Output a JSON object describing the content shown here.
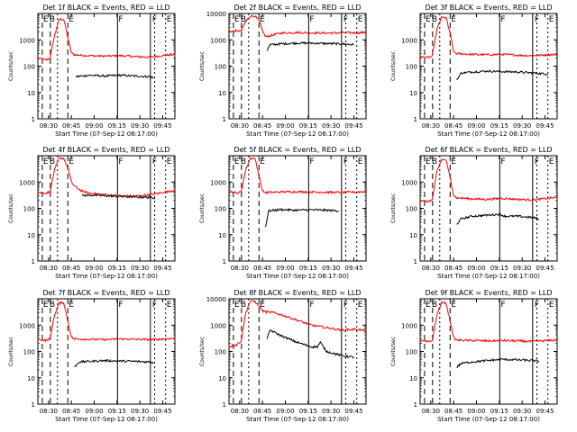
{
  "figure": {
    "xlabel": "Start Time (07-Sep-12 08:17:00)",
    "ylabel": "Counts/sec",
    "xticks": [
      "08:30",
      "08:45",
      "09:00",
      "09:15",
      "09:30",
      "09:45"
    ],
    "yticks": [
      "1",
      "10",
      "100",
      "1000",
      "10000"
    ],
    "flags": [
      "E",
      "B",
      "E",
      "F",
      "F",
      "E"
    ],
    "colors": {
      "events": "#000000",
      "lld": "#ff0000",
      "background": "#ffffff"
    }
  },
  "chart_data": [
    {
      "type": "line",
      "title": "Det 1f  BLACK = Events, RED = LLD",
      "xlabel": "Start Time (07-Sep-12 08:17:00)",
      "ylabel": "Counts/sec",
      "x_unit": "minutes after 08:17:00",
      "xlim": [
        6,
        96
      ],
      "ylim": [
        1,
        10000
      ],
      "yscale": "log",
      "ytick_labels": [
        "1",
        "10",
        "100",
        "1000"
      ],
      "series": [
        {
          "name": "LLD",
          "color": "#ff0000",
          "x": [
            6,
            11,
            14,
            17,
            20,
            23,
            26,
            28,
            30,
            40,
            50,
            60,
            70,
            80,
            90,
            96
          ],
          "y": [
            200,
            170,
            200,
            1500,
            6000,
            6000,
            1000,
            320,
            270,
            250,
            240,
            250,
            230,
            220,
            260,
            280
          ]
        },
        {
          "name": "Events",
          "color": "#000000",
          "x": [
            31,
            40,
            50,
            60,
            70,
            80,
            82
          ],
          "y": [
            40,
            45,
            42,
            45,
            42,
            40,
            35
          ]
        }
      ]
    },
    {
      "type": "line",
      "title": "Det 2f  BLACK = Events, RED = LLD",
      "xlabel": "Start Time (07-Sep-12 08:17:00)",
      "ylabel": "Counts/sec",
      "x_unit": "minutes after 08:17:00",
      "xlim": [
        6,
        96
      ],
      "ylim": [
        1,
        10000
      ],
      "yscale": "log",
      "ytick_labels": [
        "1",
        "10",
        "100",
        "1000",
        "10000"
      ],
      "series": [
        {
          "name": "LLD",
          "color": "#ff0000",
          "x": [
            6,
            14,
            17,
            20,
            23,
            26,
            28,
            30,
            40,
            50,
            60,
            70,
            80,
            90,
            96
          ],
          "y": [
            2100,
            2200,
            5000,
            8000,
            8000,
            5000,
            2200,
            1300,
            1800,
            1900,
            1850,
            1800,
            1850,
            1850,
            1900
          ]
        },
        {
          "name": "Events",
          "color": "#000000",
          "x": [
            31,
            33,
            40,
            50,
            60,
            70,
            80,
            88
          ],
          "y": [
            400,
            650,
            700,
            750,
            750,
            720,
            700,
            650
          ]
        }
      ]
    },
    {
      "type": "line",
      "title": "Det 3f  BLACK = Events, RED = LLD",
      "xlabel": "Start Time (07-Sep-12 08:17:00)",
      "ylabel": "Counts/sec",
      "x_unit": "minutes after 08:17:00",
      "xlim": [
        6,
        96
      ],
      "ylim": [
        1,
        10000
      ],
      "yscale": "log",
      "ytick_labels": [
        "1",
        "10",
        "100",
        "1000"
      ],
      "series": [
        {
          "name": "LLD",
          "color": "#ff0000",
          "x": [
            6,
            11,
            14,
            17,
            20,
            23,
            26,
            28,
            30,
            40,
            50,
            60,
            70,
            80,
            90,
            96
          ],
          "y": [
            230,
            210,
            240,
            2500,
            7000,
            7000,
            1500,
            350,
            300,
            280,
            270,
            280,
            260,
            250,
            270,
            280
          ]
        },
        {
          "name": "Events",
          "color": "#000000",
          "x": [
            30,
            33,
            40,
            50,
            60,
            70,
            80,
            90
          ],
          "y": [
            30,
            55,
            60,
            65,
            62,
            60,
            55,
            50
          ]
        }
      ]
    },
    {
      "type": "line",
      "title": "Det 4f  BLACK = Events, RED = LLD",
      "xlabel": "Start Time (07-Sep-12 08:17:00)",
      "ylabel": "Counts/sec",
      "x_unit": "minutes after 08:17:00",
      "xlim": [
        6,
        96
      ],
      "ylim": [
        1,
        10000
      ],
      "yscale": "log",
      "ytick_labels": [
        "1",
        "10",
        "100",
        "1000"
      ],
      "series": [
        {
          "name": "LLD",
          "color": "#ff0000",
          "x": [
            6,
            11,
            14,
            17,
            20,
            23,
            26,
            28,
            30,
            35,
            40,
            50,
            60,
            70,
            80,
            90,
            96
          ],
          "y": [
            400,
            380,
            420,
            3000,
            8000,
            8000,
            3000,
            1000,
            700,
            450,
            380,
            330,
            300,
            290,
            330,
            420,
            480
          ]
        },
        {
          "name": "Events",
          "color": "#000000",
          "x": [
            35,
            40,
            50,
            60,
            70,
            80,
            83
          ],
          "y": [
            300,
            320,
            300,
            280,
            270,
            260,
            250
          ]
        }
      ]
    },
    {
      "type": "line",
      "title": "Det 5f  BLACK = Events, RED = LLD",
      "xlabel": "Start Time (07-Sep-12 08:17:00)",
      "ylabel": "Counts/sec",
      "x_unit": "minutes after 08:17:00",
      "xlim": [
        6,
        96
      ],
      "ylim": [
        1,
        10000
      ],
      "yscale": "log",
      "ytick_labels": [
        "1",
        "10",
        "100",
        "1000"
      ],
      "series": [
        {
          "name": "LLD",
          "color": "#ff0000",
          "x": [
            6,
            11,
            14,
            17,
            20,
            23,
            26,
            28,
            30,
            40,
            50,
            60,
            70,
            80,
            90,
            96
          ],
          "y": [
            450,
            380,
            420,
            3000,
            8000,
            8000,
            1500,
            450,
            400,
            420,
            430,
            420,
            410,
            400,
            420,
            430
          ]
        },
        {
          "name": "Events",
          "color": "#000000",
          "x": [
            30,
            32,
            40,
            50,
            60,
            70,
            78
          ],
          "y": [
            20,
            80,
            90,
            85,
            88,
            85,
            80
          ]
        }
      ]
    },
    {
      "type": "line",
      "title": "Det 6f  BLACK = Events, RED = LLD",
      "xlabel": "Start Time (07-Sep-12 08:17:00)",
      "ylabel": "Counts/sec",
      "x_unit": "minutes after 08:17:00",
      "xlim": [
        6,
        96
      ],
      "ylim": [
        1,
        10000
      ],
      "yscale": "log",
      "ytick_labels": [
        "1",
        "10",
        "100",
        "1000"
      ],
      "series": [
        {
          "name": "LLD",
          "color": "#ff0000",
          "x": [
            6,
            11,
            14,
            17,
            20,
            23,
            26,
            28,
            30,
            40,
            50,
            60,
            70,
            80,
            90,
            96
          ],
          "y": [
            200,
            180,
            210,
            2500,
            7000,
            7000,
            1200,
            320,
            250,
            230,
            220,
            240,
            220,
            210,
            240,
            260
          ]
        },
        {
          "name": "Events",
          "color": "#000000",
          "x": [
            30,
            33,
            40,
            50,
            58,
            62,
            70,
            80,
            84
          ],
          "y": [
            25,
            40,
            50,
            55,
            60,
            50,
            50,
            45,
            40
          ]
        }
      ]
    },
    {
      "type": "line",
      "title": "Det 7f  BLACK = Events, RED = LLD",
      "xlabel": "Start Time (07-Sep-12 08:17:00)",
      "ylabel": "Counts/sec",
      "x_unit": "minutes after 08:17:00",
      "xlim": [
        6,
        96
      ],
      "ylim": [
        1,
        10000
      ],
      "yscale": "log",
      "ytick_labels": [
        "1",
        "10",
        "100",
        "1000"
      ],
      "series": [
        {
          "name": "LLD",
          "color": "#ff0000",
          "x": [
            6,
            11,
            14,
            17,
            20,
            23,
            26,
            28,
            30,
            40,
            50,
            60,
            70,
            80,
            90,
            96
          ],
          "y": [
            300,
            260,
            300,
            2500,
            7000,
            7000,
            1200,
            350,
            300,
            290,
            280,
            300,
            290,
            280,
            300,
            320
          ]
        },
        {
          "name": "Events",
          "color": "#000000",
          "x": [
            30,
            33,
            40,
            50,
            60,
            70,
            80,
            82
          ],
          "y": [
            25,
            40,
            42,
            45,
            43,
            42,
            40,
            38
          ]
        }
      ]
    },
    {
      "type": "line",
      "title": "Det 8f  BLACK = Events, RED = LLD",
      "xlabel": "Start Time (07-Sep-12 08:17:00)",
      "ylabel": "Counts/sec",
      "x_unit": "minutes after 08:17:00",
      "xlim": [
        6,
        96
      ],
      "ylim": [
        1,
        10000
      ],
      "yscale": "log",
      "ytick_labels": [
        "1",
        "10",
        "100",
        "1000",
        "10000"
      ],
      "series": [
        {
          "name": "LLD",
          "color": "#ff0000",
          "x": [
            6,
            11,
            14,
            17,
            20,
            23,
            26,
            28,
            30,
            35,
            40,
            50,
            60,
            70,
            80,
            90,
            96
          ],
          "y": [
            150,
            180,
            250,
            3000,
            8000,
            8000,
            5000,
            3500,
            3200,
            3000,
            2500,
            1600,
            1000,
            800,
            650,
            700,
            600
          ]
        },
        {
          "name": "Events",
          "color": "#000000",
          "x": [
            31,
            33,
            40,
            50,
            60,
            64,
            66,
            70,
            80,
            88
          ],
          "y": [
            300,
            650,
            400,
            230,
            150,
            150,
            220,
            100,
            70,
            60
          ]
        }
      ]
    },
    {
      "type": "line",
      "title": "Det 9f  BLACK = Events, RED = LLD",
      "xlabel": "Start Time (07-Sep-12 08:17:00)",
      "ylabel": "Counts/sec",
      "x_unit": "minutes after 08:17:00",
      "xlim": [
        6,
        96
      ],
      "ylim": [
        1,
        10000
      ],
      "yscale": "log",
      "ytick_labels": [
        "1",
        "10",
        "100",
        "1000"
      ],
      "series": [
        {
          "name": "LLD",
          "color": "#ff0000",
          "x": [
            6,
            11,
            14,
            17,
            20,
            23,
            26,
            28,
            30,
            40,
            50,
            60,
            70,
            80,
            90,
            96
          ],
          "y": [
            250,
            230,
            260,
            2500,
            7000,
            7000,
            1200,
            330,
            270,
            260,
            250,
            260,
            250,
            240,
            260,
            270
          ]
        },
        {
          "name": "Events",
          "color": "#000000",
          "x": [
            30,
            33,
            40,
            50,
            60,
            70,
            80,
            84
          ],
          "y": [
            25,
            35,
            40,
            45,
            50,
            48,
            45,
            42
          ]
        }
      ]
    }
  ]
}
